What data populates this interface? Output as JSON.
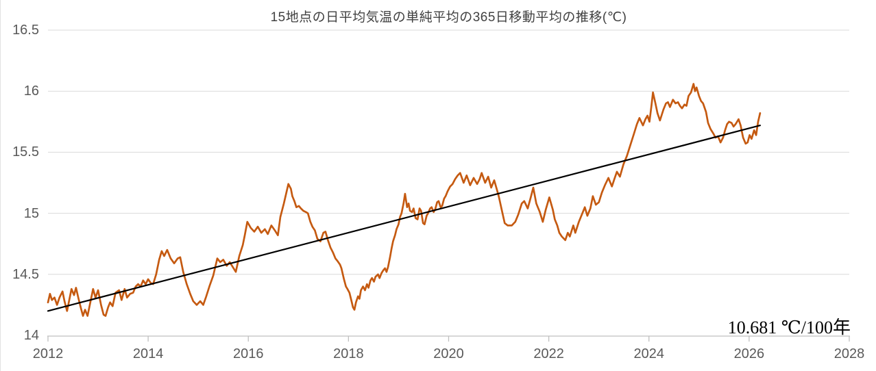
{
  "chart_data": {
    "type": "line",
    "title": "15地点の日平均気温の単純平均の365日移動平均の推移(℃)",
    "annotation": "10.681 ℃/100年",
    "xlabel": "",
    "ylabel": "",
    "xlim": [
      2012,
      2028
    ],
    "ylim": [
      14,
      16.5
    ],
    "x_ticks": [
      2012,
      2014,
      2016,
      2018,
      2020,
      2022,
      2024,
      2026,
      2028
    ],
    "x_tick_labels": [
      "2012",
      "2014",
      "2016",
      "2018",
      "2020",
      "2022",
      "2024",
      "2026",
      "2028"
    ],
    "y_ticks": [
      14,
      14.5,
      15,
      15.5,
      16,
      16.5
    ],
    "y_tick_labels": [
      "14",
      "14.5",
      "15",
      "15.5",
      "16",
      "16.5"
    ],
    "grid": "horizontal-only",
    "legend": "none",
    "colors": {
      "series": "#C55A11",
      "trend": "#000000",
      "gridline": "#D9D9D9",
      "axis": "#BFBFBF",
      "tick_label": "#595959",
      "title": "#404040",
      "annotation": "#000000"
    },
    "series": [
      {
        "role": "moving-average",
        "color": "#C55A11",
        "width": 2.7,
        "points": [
          [
            2012.0,
            14.27
          ],
          [
            2012.04,
            14.34
          ],
          [
            2012.08,
            14.29
          ],
          [
            2012.13,
            14.31
          ],
          [
            2012.18,
            14.25
          ],
          [
            2012.23,
            14.31
          ],
          [
            2012.29,
            14.36
          ],
          [
            2012.33,
            14.28
          ],
          [
            2012.38,
            14.2
          ],
          [
            2012.43,
            14.3
          ],
          [
            2012.47,
            14.38
          ],
          [
            2012.52,
            14.33
          ],
          [
            2012.56,
            14.39
          ],
          [
            2012.61,
            14.3
          ],
          [
            2012.66,
            14.22
          ],
          [
            2012.7,
            14.16
          ],
          [
            2012.74,
            14.21
          ],
          [
            2012.79,
            14.16
          ],
          [
            2012.84,
            14.26
          ],
          [
            2012.9,
            14.38
          ],
          [
            2012.95,
            14.31
          ],
          [
            2013.0,
            14.37
          ],
          [
            2013.06,
            14.25
          ],
          [
            2013.11,
            14.17
          ],
          [
            2013.15,
            14.16
          ],
          [
            2013.2,
            14.23
          ],
          [
            2013.24,
            14.27
          ],
          [
            2013.29,
            14.24
          ],
          [
            2013.35,
            14.35
          ],
          [
            2013.42,
            14.37
          ],
          [
            2013.47,
            14.29
          ],
          [
            2013.53,
            14.38
          ],
          [
            2013.58,
            14.31
          ],
          [
            2013.64,
            14.34
          ],
          [
            2013.7,
            14.35
          ],
          [
            2013.75,
            14.4
          ],
          [
            2013.8,
            14.42
          ],
          [
            2013.85,
            14.4
          ],
          [
            2013.9,
            14.45
          ],
          [
            2013.95,
            14.42
          ],
          [
            2014.0,
            14.46
          ],
          [
            2014.05,
            14.43
          ],
          [
            2014.1,
            14.42
          ],
          [
            2014.16,
            14.5
          ],
          [
            2014.22,
            14.62
          ],
          [
            2014.27,
            14.69
          ],
          [
            2014.32,
            14.65
          ],
          [
            2014.38,
            14.7
          ],
          [
            2014.45,
            14.63
          ],
          [
            2014.52,
            14.59
          ],
          [
            2014.59,
            14.63
          ],
          [
            2014.64,
            14.64
          ],
          [
            2014.7,
            14.52
          ],
          [
            2014.77,
            14.42
          ],
          [
            2014.84,
            14.34
          ],
          [
            2014.9,
            14.28
          ],
          [
            2014.97,
            14.25
          ],
          [
            2015.04,
            14.28
          ],
          [
            2015.1,
            14.25
          ],
          [
            2015.16,
            14.32
          ],
          [
            2015.23,
            14.41
          ],
          [
            2015.3,
            14.49
          ],
          [
            2015.38,
            14.63
          ],
          [
            2015.44,
            14.6
          ],
          [
            2015.5,
            14.62
          ],
          [
            2015.57,
            14.57
          ],
          [
            2015.63,
            14.6
          ],
          [
            2015.69,
            14.56
          ],
          [
            2015.75,
            14.52
          ],
          [
            2015.82,
            14.65
          ],
          [
            2015.89,
            14.74
          ],
          [
            2015.93,
            14.82
          ],
          [
            2015.98,
            14.93
          ],
          [
            2016.05,
            14.88
          ],
          [
            2016.12,
            14.85
          ],
          [
            2016.19,
            14.89
          ],
          [
            2016.26,
            14.84
          ],
          [
            2016.33,
            14.87
          ],
          [
            2016.39,
            14.83
          ],
          [
            2016.46,
            14.9
          ],
          [
            2016.53,
            14.86
          ],
          [
            2016.59,
            14.82
          ],
          [
            2016.64,
            14.97
          ],
          [
            2016.71,
            15.08
          ],
          [
            2016.8,
            15.24
          ],
          [
            2016.85,
            15.2
          ],
          [
            2016.88,
            15.14
          ],
          [
            2016.92,
            15.1
          ],
          [
            2016.96,
            15.05
          ],
          [
            2017.01,
            15.06
          ],
          [
            2017.05,
            15.04
          ],
          [
            2017.1,
            15.02
          ],
          [
            2017.15,
            15.01
          ],
          [
            2017.19,
            15.0
          ],
          [
            2017.24,
            14.93
          ],
          [
            2017.28,
            14.89
          ],
          [
            2017.33,
            14.86
          ],
          [
            2017.38,
            14.79
          ],
          [
            2017.44,
            14.77
          ],
          [
            2017.5,
            14.84
          ],
          [
            2017.54,
            14.85
          ],
          [
            2017.59,
            14.78
          ],
          [
            2017.64,
            14.72
          ],
          [
            2017.69,
            14.68
          ],
          [
            2017.74,
            14.63
          ],
          [
            2017.78,
            14.61
          ],
          [
            2017.83,
            14.58
          ],
          [
            2017.86,
            14.55
          ],
          [
            2017.91,
            14.46
          ],
          [
            2017.95,
            14.4
          ],
          [
            2017.98,
            14.38
          ],
          [
            2018.02,
            14.35
          ],
          [
            2018.05,
            14.3
          ],
          [
            2018.09,
            14.23
          ],
          [
            2018.12,
            14.21
          ],
          [
            2018.15,
            14.27
          ],
          [
            2018.19,
            14.32
          ],
          [
            2018.22,
            14.3
          ],
          [
            2018.25,
            14.37
          ],
          [
            2018.29,
            14.4
          ],
          [
            2018.33,
            14.37
          ],
          [
            2018.37,
            14.42
          ],
          [
            2018.4,
            14.39
          ],
          [
            2018.44,
            14.45
          ],
          [
            2018.47,
            14.47
          ],
          [
            2018.51,
            14.44
          ],
          [
            2018.54,
            14.48
          ],
          [
            2018.59,
            14.5
          ],
          [
            2018.62,
            14.47
          ],
          [
            2018.66,
            14.51
          ],
          [
            2018.69,
            14.53
          ],
          [
            2018.73,
            14.55
          ],
          [
            2018.76,
            14.52
          ],
          [
            2018.79,
            14.56
          ],
          [
            2018.83,
            14.64
          ],
          [
            2018.86,
            14.71
          ],
          [
            2018.89,
            14.77
          ],
          [
            2018.93,
            14.82
          ],
          [
            2018.96,
            14.87
          ],
          [
            2019.0,
            14.91
          ],
          [
            2019.03,
            14.97
          ],
          [
            2019.06,
            15.0
          ],
          [
            2019.1,
            15.08
          ],
          [
            2019.13,
            15.16
          ],
          [
            2019.17,
            15.05
          ],
          [
            2019.2,
            15.08
          ],
          [
            2019.23,
            15.02
          ],
          [
            2019.27,
            15.01
          ],
          [
            2019.3,
            15.04
          ],
          [
            2019.34,
            14.96
          ],
          [
            2019.38,
            14.95
          ],
          [
            2019.42,
            15.04
          ],
          [
            2019.45,
            15.02
          ],
          [
            2019.49,
            14.92
          ],
          [
            2019.52,
            14.91
          ],
          [
            2019.56,
            14.98
          ],
          [
            2019.59,
            15.0
          ],
          [
            2019.63,
            15.04
          ],
          [
            2019.66,
            15.05
          ],
          [
            2019.7,
            15.01
          ],
          [
            2019.73,
            15.03
          ],
          [
            2019.77,
            15.09
          ],
          [
            2019.8,
            15.1
          ],
          [
            2019.84,
            15.05
          ],
          [
            2019.87,
            15.06
          ],
          [
            2019.91,
            15.12
          ],
          [
            2019.94,
            15.14
          ],
          [
            2019.98,
            15.18
          ],
          [
            2020.03,
            15.22
          ],
          [
            2020.08,
            15.24
          ],
          [
            2020.13,
            15.28
          ],
          [
            2020.18,
            15.31
          ],
          [
            2020.23,
            15.33
          ],
          [
            2020.3,
            15.25
          ],
          [
            2020.36,
            15.31
          ],
          [
            2020.43,
            15.23
          ],
          [
            2020.5,
            15.29
          ],
          [
            2020.57,
            15.24
          ],
          [
            2020.62,
            15.28
          ],
          [
            2020.66,
            15.33
          ],
          [
            2020.73,
            15.25
          ],
          [
            2020.79,
            15.3
          ],
          [
            2020.85,
            15.21
          ],
          [
            2020.91,
            15.27
          ],
          [
            2020.96,
            15.2
          ],
          [
            2021.0,
            15.14
          ],
          [
            2021.07,
            15.01
          ],
          [
            2021.12,
            14.92
          ],
          [
            2021.18,
            14.9
          ],
          [
            2021.26,
            14.9
          ],
          [
            2021.33,
            14.93
          ],
          [
            2021.39,
            14.99
          ],
          [
            2021.46,
            15.08
          ],
          [
            2021.51,
            15.1
          ],
          [
            2021.58,
            15.04
          ],
          [
            2021.64,
            15.13
          ],
          [
            2021.69,
            15.21
          ],
          [
            2021.75,
            15.08
          ],
          [
            2021.82,
            15.01
          ],
          [
            2021.88,
            14.93
          ],
          [
            2021.94,
            15.03
          ],
          [
            2022.01,
            15.13
          ],
          [
            2022.08,
            15.03
          ],
          [
            2022.12,
            14.95
          ],
          [
            2022.17,
            14.9
          ],
          [
            2022.21,
            14.84
          ],
          [
            2022.26,
            14.81
          ],
          [
            2022.33,
            14.78
          ],
          [
            2022.38,
            14.84
          ],
          [
            2022.42,
            14.81
          ],
          [
            2022.49,
            14.9
          ],
          [
            2022.53,
            14.84
          ],
          [
            2022.6,
            14.93
          ],
          [
            2022.67,
            15.0
          ],
          [
            2022.72,
            15.05
          ],
          [
            2022.77,
            14.98
          ],
          [
            2022.83,
            15.04
          ],
          [
            2022.88,
            15.14
          ],
          [
            2022.94,
            15.07
          ],
          [
            2023.0,
            15.09
          ],
          [
            2023.06,
            15.17
          ],
          [
            2023.12,
            15.23
          ],
          [
            2023.19,
            15.29
          ],
          [
            2023.26,
            15.22
          ],
          [
            2023.31,
            15.28
          ],
          [
            2023.36,
            15.34
          ],
          [
            2023.42,
            15.3
          ],
          [
            2023.49,
            15.4
          ],
          [
            2023.56,
            15.47
          ],
          [
            2023.63,
            15.56
          ],
          [
            2023.7,
            15.65
          ],
          [
            2023.76,
            15.73
          ],
          [
            2023.81,
            15.78
          ],
          [
            2023.88,
            15.72
          ],
          [
            2023.93,
            15.77
          ],
          [
            2023.97,
            15.8
          ],
          [
            2024.01,
            15.75
          ],
          [
            2024.05,
            15.88
          ],
          [
            2024.08,
            15.99
          ],
          [
            2024.13,
            15.9
          ],
          [
            2024.17,
            15.82
          ],
          [
            2024.22,
            15.76
          ],
          [
            2024.29,
            15.85
          ],
          [
            2024.34,
            15.9
          ],
          [
            2024.38,
            15.91
          ],
          [
            2024.42,
            15.87
          ],
          [
            2024.48,
            15.93
          ],
          [
            2024.53,
            15.9
          ],
          [
            2024.58,
            15.91
          ],
          [
            2024.62,
            15.88
          ],
          [
            2024.66,
            15.86
          ],
          [
            2024.71,
            15.89
          ],
          [
            2024.75,
            15.88
          ],
          [
            2024.79,
            15.96
          ],
          [
            2024.84,
            15.99
          ],
          [
            2024.89,
            16.06
          ],
          [
            2024.92,
            16.0
          ],
          [
            2024.95,
            16.03
          ],
          [
            2025.0,
            15.96
          ],
          [
            2025.04,
            15.92
          ],
          [
            2025.08,
            15.9
          ],
          [
            2025.14,
            15.83
          ],
          [
            2025.18,
            15.74
          ],
          [
            2025.23,
            15.69
          ],
          [
            2025.29,
            15.65
          ],
          [
            2025.33,
            15.62
          ],
          [
            2025.38,
            15.63
          ],
          [
            2025.43,
            15.58
          ],
          [
            2025.48,
            15.62
          ],
          [
            2025.52,
            15.68
          ],
          [
            2025.56,
            15.73
          ],
          [
            2025.6,
            15.75
          ],
          [
            2025.65,
            15.74
          ],
          [
            2025.69,
            15.71
          ],
          [
            2025.73,
            15.73
          ],
          [
            2025.79,
            15.77
          ],
          [
            2025.83,
            15.72
          ],
          [
            2025.88,
            15.62
          ],
          [
            2025.93,
            15.57
          ],
          [
            2025.97,
            15.58
          ],
          [
            2026.01,
            15.64
          ],
          [
            2026.05,
            15.61
          ],
          [
            2026.1,
            15.68
          ],
          [
            2026.14,
            15.64
          ],
          [
            2026.18,
            15.75
          ],
          [
            2026.22,
            15.82
          ]
        ]
      },
      {
        "role": "linear-trend",
        "color": "#000000",
        "width": 2.2,
        "points": [
          [
            2012.0,
            14.2
          ],
          [
            2026.22,
            15.72
          ]
        ]
      }
    ]
  }
}
